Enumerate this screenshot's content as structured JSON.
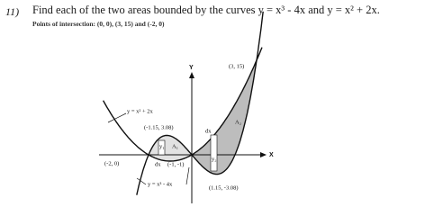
{
  "header": {
    "number": "11)",
    "question": "Find each of the two areas bounded by the curves y = x³ - 4x and y = x² + 2x.",
    "note": "Points of intersection: (0, 0), (3, 15) and (-2, 0)"
  },
  "diagram": {
    "y_axis": "Y",
    "x_axis": "X",
    "labels": [
      "y = x² + 2x",
      "(-1.15, 3.08)",
      "y₁",
      "A₁",
      "(-2, 0)",
      "dx",
      "(-1, -1)",
      "y = x³ - 4x",
      "(1.15, -3.08)",
      "(3, 15)",
      "A₂",
      "dx",
      "y₂"
    ]
  }
}
